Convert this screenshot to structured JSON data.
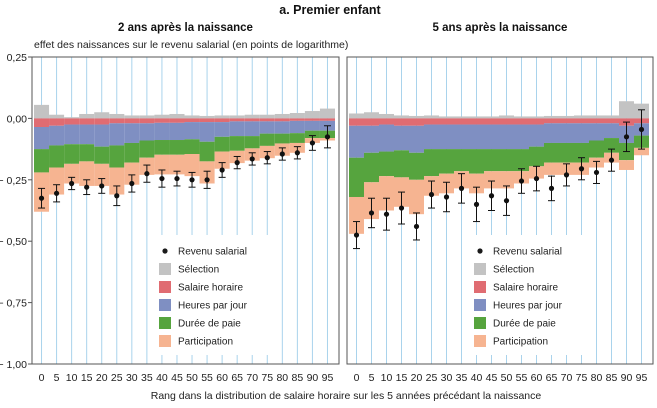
{
  "chart_data": {
    "type": "bar",
    "title": "a. Premier enfant",
    "ylabel": "effet des naissances sur le revenu salarial (en points de logarithme)",
    "xlabel": "Rang dans la distribution de salaire horaire sur les 5 années précédant la naissance",
    "ylim": [
      -1.0,
      0.25
    ],
    "yticks": [
      0.25,
      0.0,
      -0.25,
      -0.5,
      -0.75,
      -1.0
    ],
    "ytick_labels": [
      "0,25",
      "0,00",
      "− 0,25",
      "− 0,50",
      "− 0,75",
      "− 1,00"
    ],
    "categories": [
      "0",
      "5",
      "10",
      "15",
      "20",
      "25",
      "30",
      "35",
      "40",
      "45",
      "50",
      "55",
      "60",
      "65",
      "70",
      "75",
      "80",
      "85",
      "90",
      "95"
    ],
    "grid": "vertical",
    "legend_position": "bottom-right",
    "legend": [
      {
        "key": "revenu",
        "label": "Revenu salarial",
        "marker": "dot",
        "color": "#1a1a1a"
      },
      {
        "key": "selection",
        "label": "Sélection",
        "marker": "square",
        "color": "#c3c3c3"
      },
      {
        "key": "salaire",
        "label": "Salaire horaire",
        "marker": "square",
        "color": "#e06c72"
      },
      {
        "key": "heures",
        "label": "Heures par jour",
        "marker": "square",
        "color": "#7f8fc2"
      },
      {
        "key": "duree",
        "label": "Durée de paie",
        "marker": "square",
        "color": "#56a43e"
      },
      {
        "key": "participation",
        "label": "Participation",
        "marker": "square",
        "color": "#f6b491"
      }
    ],
    "panels": [
      {
        "title": "2 ans après la naissance",
        "selection": [
          0.055,
          0.015,
          0.005,
          0.018,
          0.025,
          0.018,
          0.012,
          0.012,
          0.015,
          0.018,
          0.012,
          0.01,
          0.012,
          0.012,
          0.015,
          0.015,
          0.018,
          0.022,
          0.03,
          0.04
        ],
        "salaire": [
          -0.035,
          -0.03,
          -0.025,
          -0.025,
          -0.025,
          -0.02,
          -0.02,
          -0.02,
          -0.018,
          -0.018,
          -0.015,
          -0.015,
          -0.015,
          -0.012,
          -0.012,
          -0.012,
          -0.012,
          -0.01,
          -0.01,
          -0.01
        ],
        "heures": [
          -0.09,
          -0.08,
          -0.08,
          -0.08,
          -0.09,
          -0.09,
          -0.08,
          -0.07,
          -0.07,
          -0.07,
          -0.07,
          -0.08,
          -0.06,
          -0.06,
          -0.06,
          -0.05,
          -0.05,
          -0.05,
          -0.04,
          -0.04
        ],
        "duree": [
          -0.095,
          -0.09,
          -0.08,
          -0.07,
          -0.07,
          -0.09,
          -0.08,
          -0.07,
          -0.06,
          -0.06,
          -0.06,
          -0.08,
          -0.06,
          -0.06,
          -0.05,
          -0.05,
          -0.04,
          -0.04,
          -0.03,
          -0.03
        ],
        "participation": [
          -0.16,
          -0.11,
          -0.08,
          -0.1,
          -0.09,
          -0.11,
          -0.09,
          -0.07,
          -0.08,
          -0.08,
          -0.09,
          -0.09,
          -0.07,
          -0.05,
          -0.05,
          -0.05,
          -0.05,
          -0.04,
          -0.02,
          -0.01
        ],
        "revenu": [
          -0.325,
          -0.305,
          -0.265,
          -0.28,
          -0.275,
          -0.315,
          -0.265,
          -0.225,
          -0.245,
          -0.245,
          -0.25,
          -0.25,
          -0.21,
          -0.18,
          -0.165,
          -0.16,
          -0.145,
          -0.14,
          -0.1,
          -0.075
        ],
        "ci": [
          0.04,
          0.035,
          0.025,
          0.03,
          0.03,
          0.04,
          0.035,
          0.035,
          0.035,
          0.03,
          0.03,
          0.035,
          0.03,
          0.025,
          0.025,
          0.025,
          0.025,
          0.025,
          0.03,
          0.045
        ]
      },
      {
        "title": "5 ans après la naissance",
        "selection": [
          0.02,
          0.025,
          0.018,
          0.012,
          0.01,
          0.012,
          0.008,
          0.008,
          0.008,
          0.008,
          0.012,
          0.008,
          0.008,
          0.01,
          0.01,
          0.012,
          0.012,
          0.012,
          0.07,
          0.06
        ],
        "salaire": [
          -0.03,
          -0.03,
          -0.025,
          -0.03,
          -0.03,
          -0.025,
          -0.025,
          -0.025,
          -0.025,
          -0.025,
          -0.025,
          -0.025,
          -0.025,
          -0.02,
          -0.02,
          -0.02,
          -0.02,
          -0.02,
          -0.03,
          -0.02
        ],
        "heures": [
          -0.13,
          -0.11,
          -0.11,
          -0.1,
          -0.11,
          -0.1,
          -0.1,
          -0.1,
          -0.1,
          -0.1,
          -0.1,
          -0.1,
          -0.09,
          -0.08,
          -0.08,
          -0.08,
          -0.07,
          -0.06,
          -0.07,
          -0.05
        ],
        "duree": [
          -0.16,
          -0.12,
          -0.1,
          -0.11,
          -0.11,
          -0.11,
          -0.1,
          -0.09,
          -0.1,
          -0.09,
          -0.09,
          -0.09,
          -0.08,
          -0.08,
          -0.08,
          -0.08,
          -0.07,
          -0.06,
          -0.07,
          -0.05
        ],
        "participation": [
          -0.15,
          -0.15,
          -0.14,
          -0.12,
          -0.14,
          -0.08,
          -0.08,
          -0.07,
          -0.08,
          -0.07,
          -0.07,
          -0.05,
          -0.05,
          -0.05,
          -0.05,
          -0.05,
          -0.04,
          -0.04,
          -0.04,
          -0.03
        ],
        "revenu": [
          -0.475,
          -0.385,
          -0.39,
          -0.365,
          -0.44,
          -0.31,
          -0.32,
          -0.285,
          -0.35,
          -0.315,
          -0.335,
          -0.255,
          -0.245,
          -0.285,
          -0.23,
          -0.205,
          -0.22,
          -0.17,
          -0.075,
          -0.045
        ],
        "ci": [
          0.055,
          0.06,
          0.065,
          0.065,
          0.055,
          0.055,
          0.06,
          0.06,
          0.07,
          0.06,
          0.06,
          0.05,
          0.05,
          0.05,
          0.045,
          0.045,
          0.045,
          0.045,
          0.06,
          0.08
        ]
      }
    ]
  }
}
